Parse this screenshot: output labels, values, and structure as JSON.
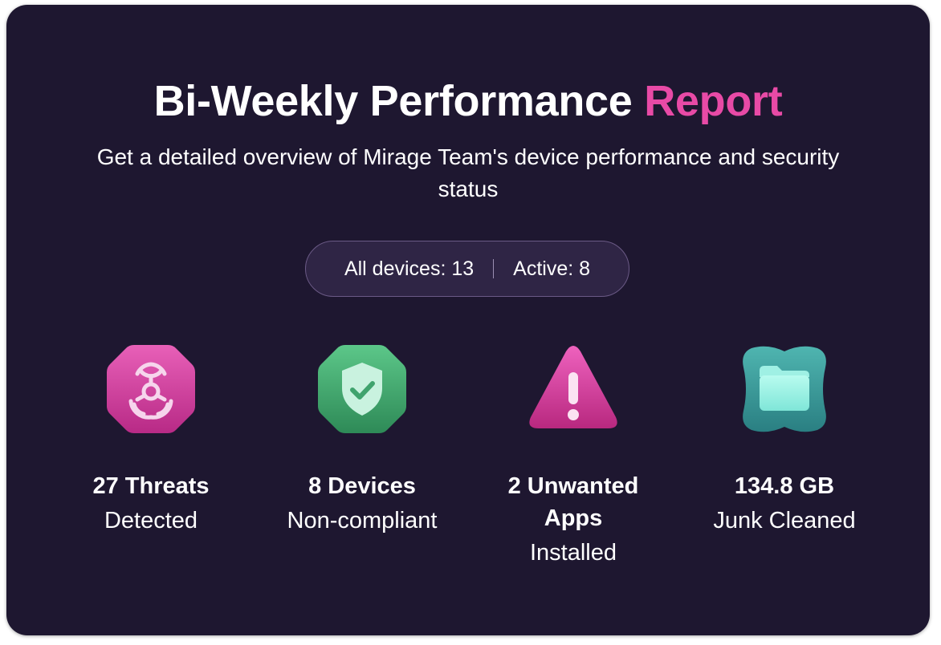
{
  "header": {
    "title_main": "Bi-Weekly Performance",
    "title_accent": "Report",
    "subtitle": "Get a detailed overview of Mirage Team's device performance and security status"
  },
  "summary": {
    "all_devices": "All devices: 13",
    "active": "Active: 8"
  },
  "stats": [
    {
      "icon": "biohazard-icon",
      "headline": "27 Threats",
      "caption": "Detected"
    },
    {
      "icon": "shield-check-icon",
      "headline": "8 Devices",
      "caption": "Non-compliant"
    },
    {
      "icon": "warning-triangle-icon",
      "headline": "2 Unwanted Apps",
      "caption": "Installed"
    },
    {
      "icon": "folder-icon",
      "headline": "134.8 GB",
      "caption": "Junk Cleaned"
    }
  ],
  "colors": {
    "background": "#1e1730",
    "accent": "#e84aa6",
    "pill_background": "#2f2545",
    "pill_border": "#6b5a86",
    "threat_pink": "#d63d9e",
    "shield_green": "#3fa36d",
    "folder_teal": "#3b9c9a"
  }
}
